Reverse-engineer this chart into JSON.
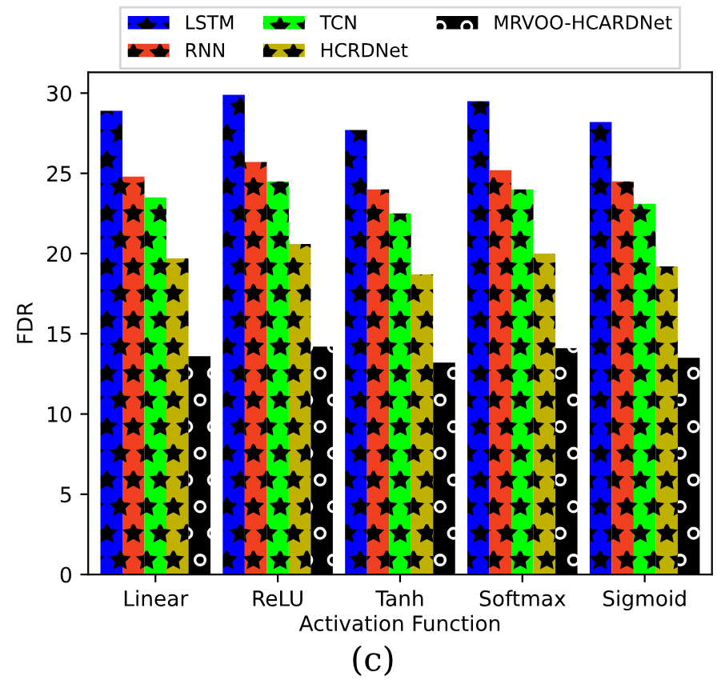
{
  "chart_data": {
    "type": "bar",
    "xlabel": "Activation Function",
    "ylabel": "FDR",
    "categories": [
      "Linear",
      "ReLU",
      "Tanh",
      "Softmax",
      "Sigmoid"
    ],
    "series": [
      {
        "name": "LSTM",
        "color": "#0000ff",
        "values": [
          28.9,
          29.9,
          27.7,
          29.5,
          28.2
        ]
      },
      {
        "name": "RNN",
        "color": "#f04020",
        "values": [
          24.8,
          25.7,
          24.0,
          25.2,
          24.5
        ]
      },
      {
        "name": "TCN",
        "color": "#00ff00",
        "values": [
          23.5,
          24.5,
          22.5,
          24.0,
          23.1
        ]
      },
      {
        "name": "HCRDNet",
        "color": "#c0b000",
        "values": [
          19.7,
          20.6,
          18.7,
          20.0,
          19.2
        ]
      },
      {
        "name": "MRVOO-HCARDNet",
        "color": "#000000",
        "values": [
          13.6,
          14.2,
          13.2,
          14.1,
          13.5
        ]
      }
    ],
    "ylim": [
      0,
      31.3
    ],
    "yticks": [
      0,
      5,
      10,
      15,
      20,
      25,
      30
    ],
    "grid": false,
    "legend": "top",
    "annotations": [
      "(c)"
    ]
  }
}
